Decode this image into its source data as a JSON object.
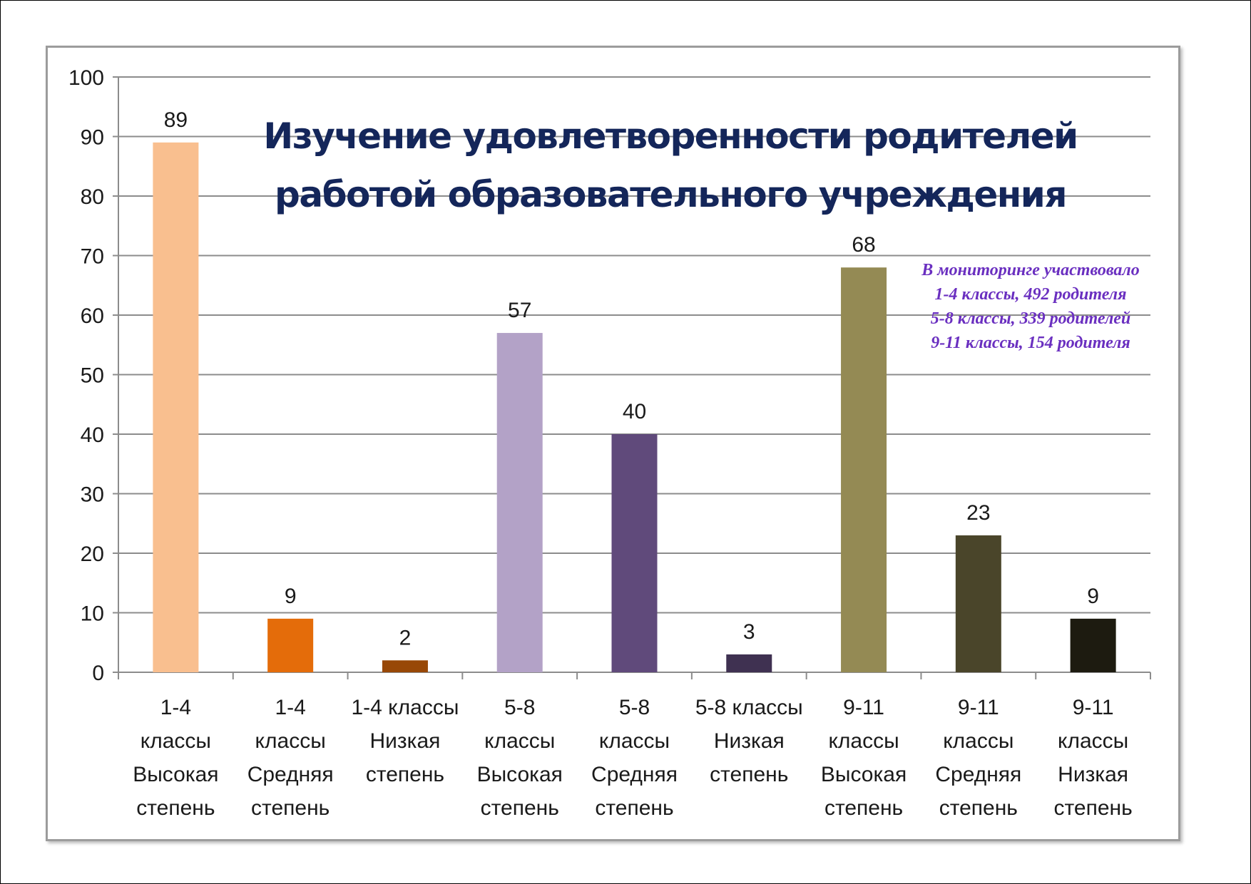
{
  "chart_data": {
    "type": "bar",
    "title": [
      "Изучение удовлетворенности родителей",
      "работой образовательного учреждения"
    ],
    "categories": [
      [
        "1-4",
        "классы",
        "Высокая",
        "степень"
      ],
      [
        "1-4",
        "классы",
        "Средняя",
        "степень"
      ],
      [
        "1-4 классы",
        "Низкая",
        "степень"
      ],
      [
        "5-8",
        "классы",
        "Высокая",
        "степень"
      ],
      [
        "5-8",
        "классы",
        "Средняя",
        "степень"
      ],
      [
        "5-8 классы",
        "Низкая",
        "степень"
      ],
      [
        "9-11",
        "классы",
        "Высокая",
        "степень"
      ],
      [
        "9-11",
        "классы",
        "Средняя",
        "степень"
      ],
      [
        "9-11",
        "классы",
        "Низкая",
        "степень"
      ]
    ],
    "values": [
      89,
      9,
      2,
      57,
      40,
      3,
      68,
      23,
      9
    ],
    "colors": [
      "#f9bf8f",
      "#e46c0a",
      "#984807",
      "#b3a2c7",
      "#604a7b",
      "#3f3151",
      "#948a54",
      "#4a452a",
      "#1d1b10"
    ],
    "ylim": [
      0,
      100
    ],
    "yticks": [
      0,
      10,
      20,
      30,
      40,
      50,
      60,
      70,
      80,
      90,
      100
    ],
    "grid": true,
    "xlabel": "",
    "ylabel": ""
  },
  "note": {
    "lines": [
      "В мониторинге участвовало",
      "1-4 классы, 492 родителя",
      "5-8 классы, 339 родителей",
      "9-11 классы, 154 родителя"
    ]
  }
}
